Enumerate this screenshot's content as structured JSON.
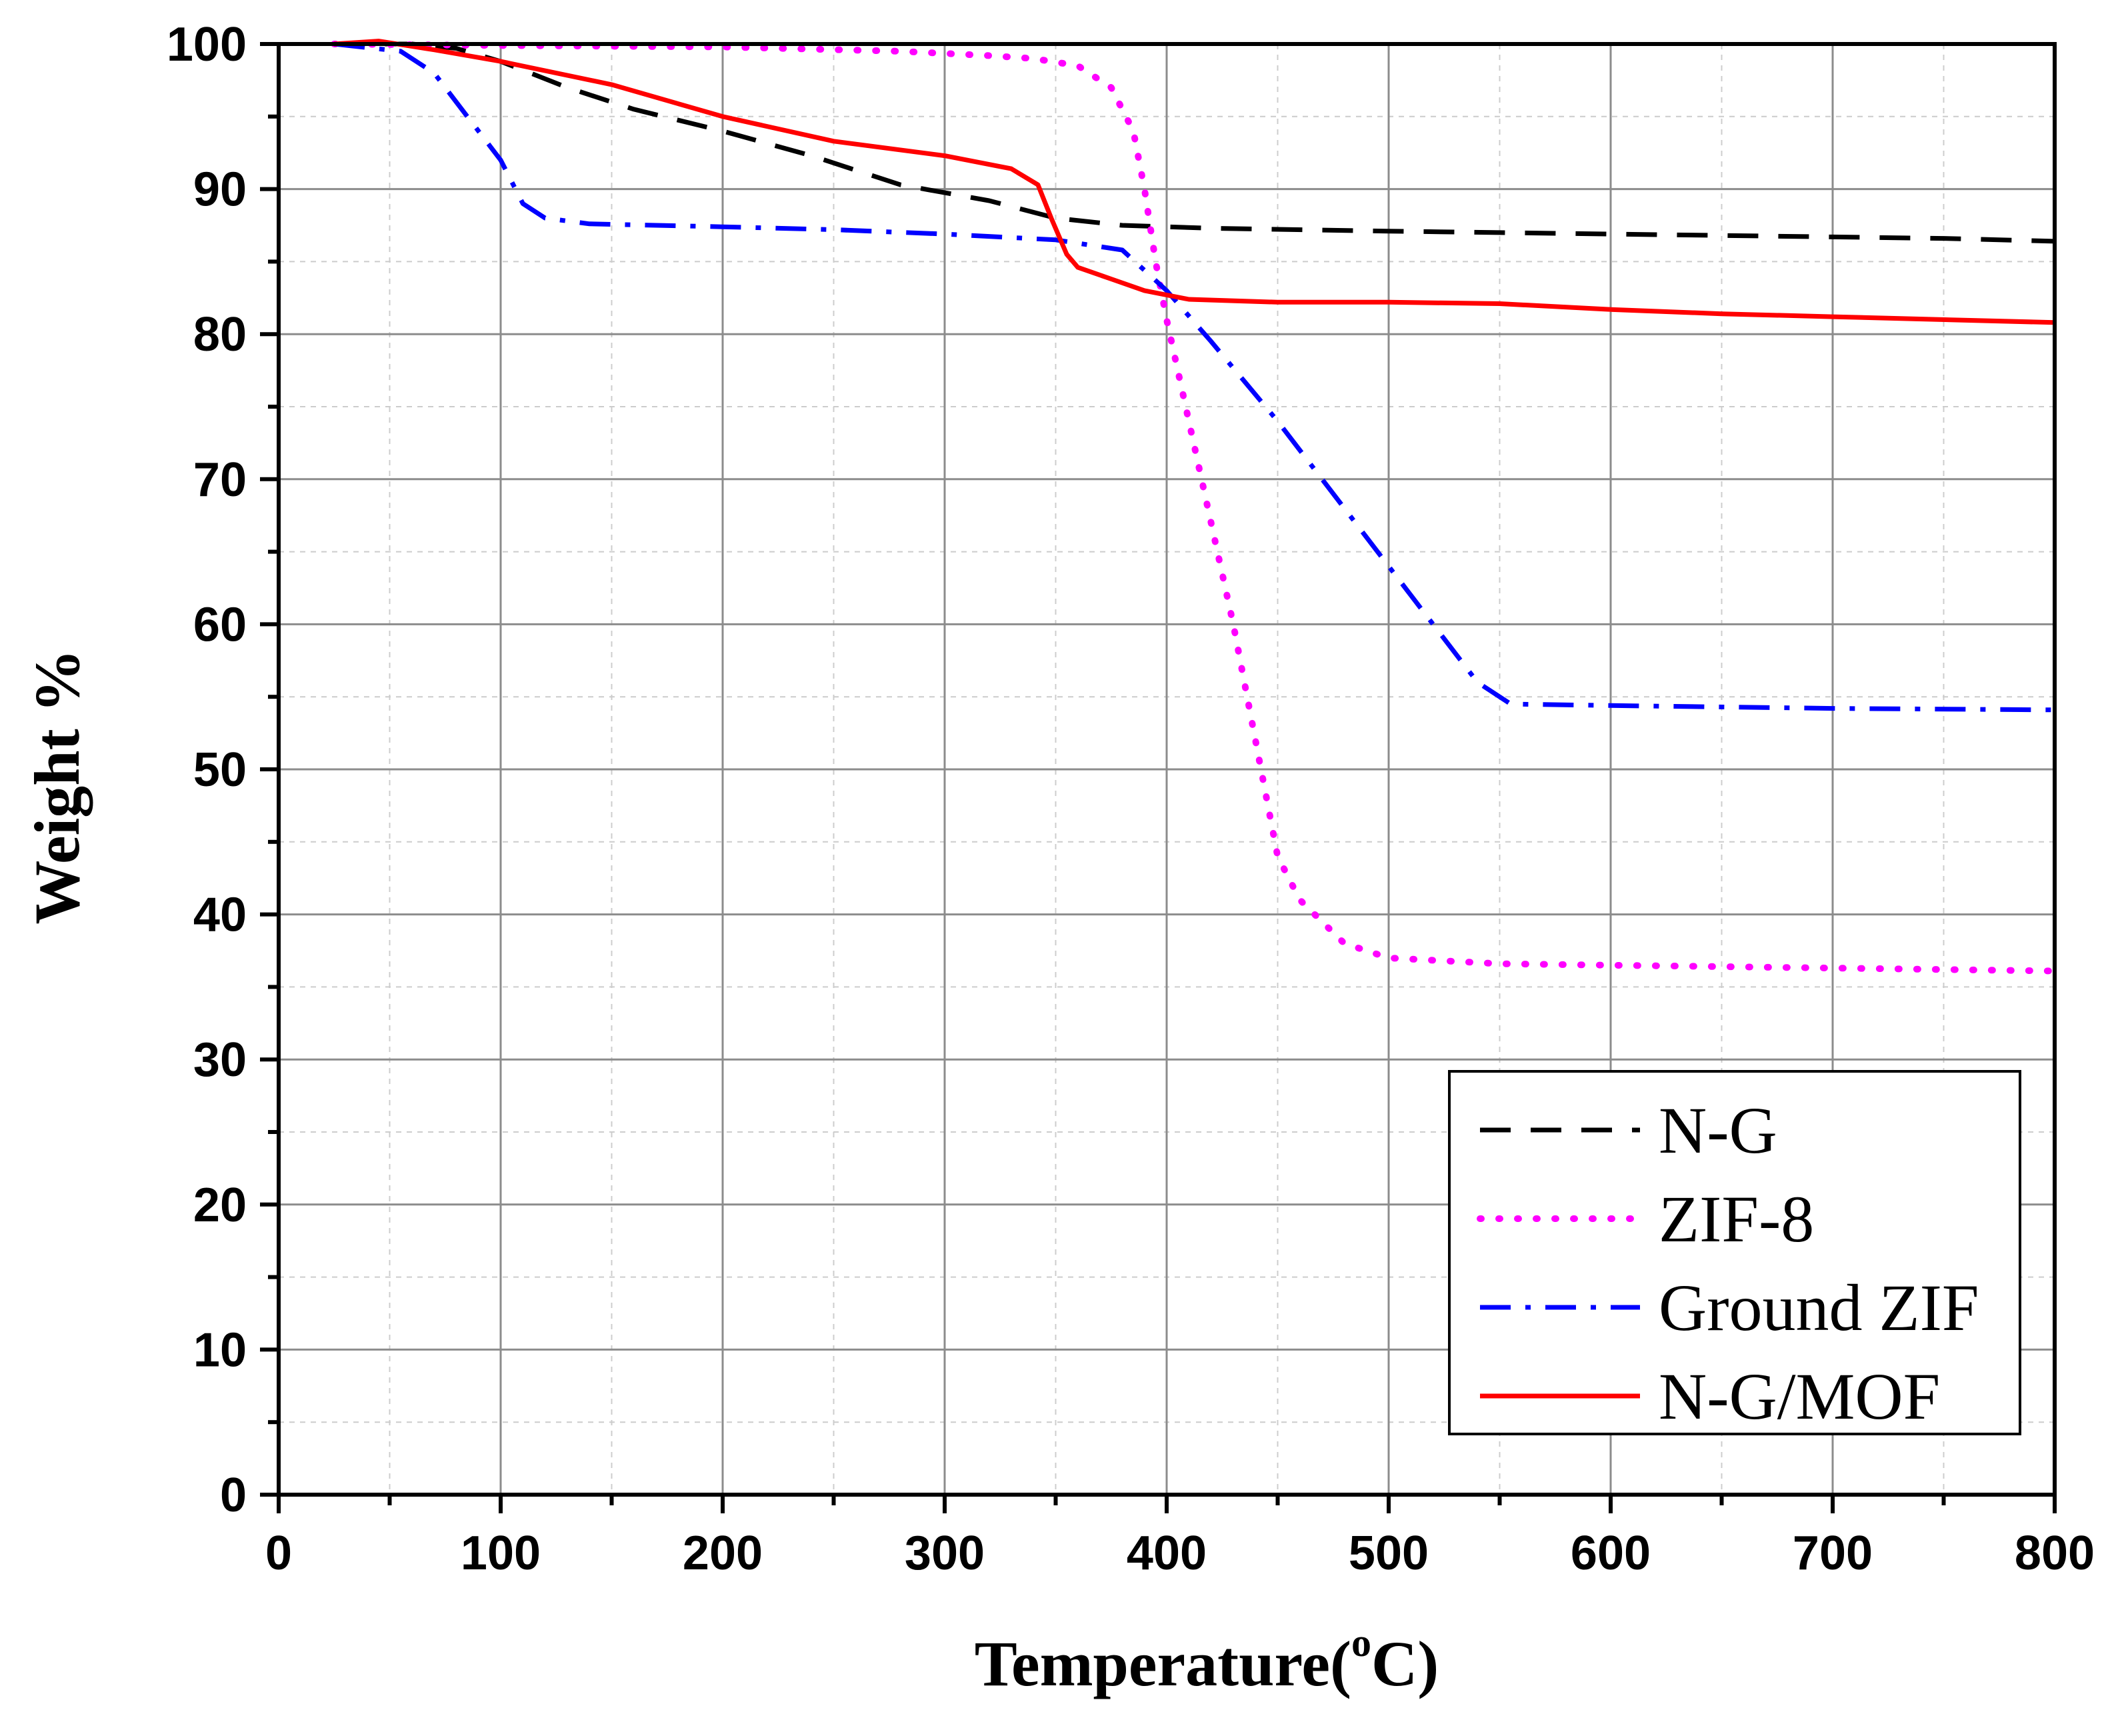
{
  "chart_data": {
    "type": "line",
    "title": "",
    "xlabel": "Temperature(",
    "xlabel_sup": "o",
    "xlabel_tail": "C)",
    "ylabel": "Weight %",
    "xlim": [
      0,
      800
    ],
    "ylim": [
      0,
      100
    ],
    "xticks": [
      0,
      100,
      200,
      300,
      400,
      500,
      600,
      700,
      800
    ],
    "yticks": [
      0,
      10,
      20,
      30,
      40,
      50,
      60,
      70,
      80,
      90,
      100
    ],
    "grid": true,
    "legend_position": "bottom-right",
    "series": [
      {
        "name": "N-G",
        "color": "#000000",
        "style": "dash",
        "points": [
          [
            25,
            100
          ],
          [
            60,
            100
          ],
          [
            80,
            99.7
          ],
          [
            100,
            98.8
          ],
          [
            130,
            97
          ],
          [
            160,
            95.5
          ],
          [
            200,
            94
          ],
          [
            240,
            92.3
          ],
          [
            280,
            90.3
          ],
          [
            320,
            89.2
          ],
          [
            350,
            88
          ],
          [
            380,
            87.5
          ],
          [
            420,
            87.3
          ],
          [
            500,
            87.1
          ],
          [
            550,
            87
          ],
          [
            600,
            86.9
          ],
          [
            650,
            86.8
          ],
          [
            700,
            86.7
          ],
          [
            750,
            86.6
          ],
          [
            800,
            86.4
          ]
        ]
      },
      {
        "name": "ZIF-8",
        "color": "#ff00ff",
        "style": "dot",
        "points": [
          [
            25,
            100
          ],
          [
            100,
            99.9
          ],
          [
            200,
            99.8
          ],
          [
            280,
            99.5
          ],
          [
            320,
            99.2
          ],
          [
            340,
            99
          ],
          [
            360,
            98.5
          ],
          [
            375,
            97
          ],
          [
            385,
            94
          ],
          [
            390,
            90
          ],
          [
            395,
            85
          ],
          [
            400,
            81
          ],
          [
            410,
            74
          ],
          [
            420,
            67
          ],
          [
            430,
            60
          ],
          [
            440,
            52
          ],
          [
            450,
            44
          ],
          [
            460,
            41
          ],
          [
            480,
            38
          ],
          [
            500,
            37
          ],
          [
            550,
            36.6
          ],
          [
            600,
            36.5
          ],
          [
            700,
            36.3
          ],
          [
            800,
            36.1
          ]
        ]
      },
      {
        "name": "Ground ZIF",
        "color": "#0000ff",
        "style": "dashdot",
        "points": [
          [
            25,
            100
          ],
          [
            55,
            99.5
          ],
          [
            70,
            98
          ],
          [
            85,
            95
          ],
          [
            100,
            92
          ],
          [
            110,
            89
          ],
          [
            120,
            88
          ],
          [
            140,
            87.6
          ],
          [
            200,
            87.4
          ],
          [
            250,
            87.2
          ],
          [
            300,
            86.9
          ],
          [
            350,
            86.5
          ],
          [
            380,
            85.8
          ],
          [
            400,
            83
          ],
          [
            420,
            79.5
          ],
          [
            450,
            74
          ],
          [
            480,
            68
          ],
          [
            510,
            62
          ],
          [
            540,
            56
          ],
          [
            555,
            54.5
          ],
          [
            600,
            54.4
          ],
          [
            700,
            54.2
          ],
          [
            800,
            54.1
          ]
        ]
      },
      {
        "name": "N-G/MOF",
        "color": "#ff0000",
        "style": "solid",
        "points": [
          [
            25,
            100
          ],
          [
            45,
            100.2
          ],
          [
            70,
            99.6
          ],
          [
            100,
            98.8
          ],
          [
            150,
            97.2
          ],
          [
            200,
            95
          ],
          [
            250,
            93.3
          ],
          [
            300,
            92.3
          ],
          [
            330,
            91.4
          ],
          [
            342,
            90.3
          ],
          [
            348,
            88
          ],
          [
            355,
            85.5
          ],
          [
            360,
            84.6
          ],
          [
            375,
            83.8
          ],
          [
            390,
            83
          ],
          [
            410,
            82.4
          ],
          [
            450,
            82.2
          ],
          [
            500,
            82.2
          ],
          [
            550,
            82.1
          ],
          [
            600,
            81.7
          ],
          [
            650,
            81.4
          ],
          [
            700,
            81.2
          ],
          [
            800,
            80.8
          ]
        ]
      }
    ]
  }
}
